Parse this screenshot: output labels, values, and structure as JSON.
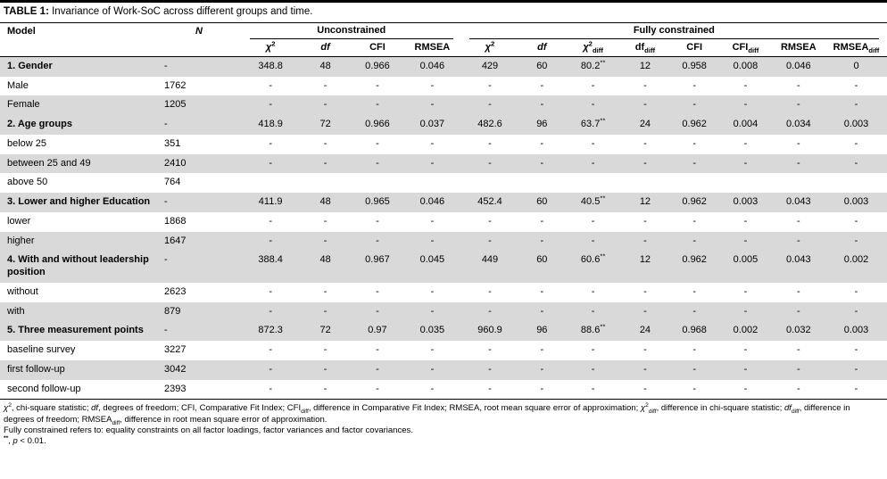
{
  "title": {
    "label": "TABLE 1:",
    "text": " Invariance of Work-SoC across different groups and time."
  },
  "columns": {
    "model": "Model",
    "n": "N",
    "unconstrained": "Unconstrained",
    "fully_constrained": "Fully constrained",
    "sub": [
      "<i>χ</i><sup>2</sup>",
      "<i>df</i>",
      "CFI",
      "RMSEA",
      "<i>χ</i><sup>2</sup>",
      "<i>df</i>",
      "<i>χ</i><sup>2</sup><sub>diff</sub>",
      "df<sub>diff</sub>",
      "CFI",
      "CFI<sub>diff</sub>",
      "RMSEA",
      "RMSEA<sub>diff</sub>"
    ]
  },
  "rows": [
    {
      "type": "group",
      "model": "1. Gender",
      "n": "-",
      "values": [
        "348.8",
        "48",
        "0.966",
        "0.046",
        "429",
        "60",
        "80.2<sup>**</sup>",
        "12",
        "0.958",
        "0.008",
        "0.046",
        "0"
      ]
    },
    {
      "type": "sub",
      "model": "Male",
      "n": "1762",
      "values": [
        "-",
        "-",
        "-",
        "-",
        "-",
        "-",
        "-",
        "-",
        "-",
        "-",
        "-",
        "-"
      ]
    },
    {
      "type": "sub",
      "model": "Female",
      "n": "1205",
      "values": [
        "-",
        "-",
        "-",
        "-",
        "-",
        "-",
        "-",
        "-",
        "-",
        "-",
        "-",
        "-"
      ]
    },
    {
      "type": "group",
      "model": "2. Age groups",
      "n": "-",
      "values": [
        "418.9",
        "72",
        "0.966",
        "0.037",
        "482.6",
        "96",
        "63.7<sup>**</sup>",
        "24",
        "0.962",
        "0.004",
        "0.034",
        "0.003"
      ]
    },
    {
      "type": "sub",
      "model": "below 25",
      "n": "351",
      "values": [
        "-",
        "-",
        "-",
        "-",
        "-",
        "-",
        "-",
        "-",
        "-",
        "-",
        "-",
        "-"
      ]
    },
    {
      "type": "sub",
      "model": "between 25 and 49",
      "n": "2410",
      "values": [
        "-",
        "-",
        "-",
        "-",
        "-",
        "-",
        "-",
        "-",
        "-",
        "-",
        "-",
        "-"
      ]
    },
    {
      "type": "sub",
      "model": "above 50",
      "n": "764",
      "values": [
        "",
        "",
        "",
        "",
        "",
        "",
        "",
        "",
        "",
        "",
        "",
        ""
      ]
    },
    {
      "type": "group",
      "model": "3. Lower and higher Education",
      "n": "-",
      "values": [
        "411.9",
        "48",
        "0.965",
        "0.046",
        "452.4",
        "60",
        "40.5<sup>**</sup>",
        "12",
        "0.962",
        "0.003",
        "0.043",
        "0.003"
      ]
    },
    {
      "type": "sub",
      "model": "lower",
      "n": "1868",
      "values": [
        "-",
        "-",
        "-",
        "-",
        "-",
        "-",
        "-",
        "-",
        "-",
        "-",
        "-",
        "-"
      ]
    },
    {
      "type": "sub",
      "model": "higher",
      "n": "1647",
      "values": [
        "-",
        "-",
        "-",
        "-",
        "-",
        "-",
        "-",
        "-",
        "-",
        "-",
        "-",
        "-"
      ]
    },
    {
      "type": "group",
      "model": "4. With and without leadership position",
      "n": "-",
      "values": [
        "388.4",
        "48",
        "0.967",
        "0.045",
        "449",
        "60",
        "60.6<sup>**</sup>",
        "12",
        "0.962",
        "0.005",
        "0.043",
        "0.002"
      ]
    },
    {
      "type": "sub",
      "model": "without",
      "n": "2623",
      "values": [
        "-",
        "-",
        "-",
        "-",
        "-",
        "-",
        "-",
        "-",
        "-",
        "-",
        "-",
        "-"
      ]
    },
    {
      "type": "sub",
      "model": "with",
      "n": "879",
      "values": [
        "-",
        "-",
        "-",
        "-",
        "-",
        "-",
        "-",
        "-",
        "-",
        "-",
        "-",
        "-"
      ]
    },
    {
      "type": "group",
      "model": "5. Three measurement points",
      "n": "-",
      "values": [
        "872.3",
        "72",
        "0.97",
        "0.035",
        "960.9",
        "96",
        "88.6<sup>**</sup>",
        "24",
        "0.968",
        "0.002",
        "0.032",
        "0.003"
      ]
    },
    {
      "type": "sub",
      "model": "baseline survey",
      "n": "3227",
      "values": [
        "-",
        "-",
        "-",
        "-",
        "-",
        "-",
        "-",
        "-",
        "-",
        "-",
        "-",
        "-"
      ]
    },
    {
      "type": "sub",
      "model": "first follow-up",
      "n": "3042",
      "values": [
        "-",
        "-",
        "-",
        "-",
        "-",
        "-",
        "-",
        "-",
        "-",
        "-",
        "-",
        "-"
      ]
    },
    {
      "type": "sub",
      "model": "second follow-up",
      "n": "2393",
      "values": [
        "-",
        "-",
        "-",
        "-",
        "-",
        "-",
        "-",
        "-",
        "-",
        "-",
        "-",
        "-"
      ]
    }
  ],
  "footnotes": [
    "<i>χ</i><sup>2</sup>, chi-square statistic; <i>df</i>, degrees of freedom; CFI, Comparative Fit Index; CFI<sub>diff</sub>, difference in Comparative Fit Index; RMSEA, root mean square error of approximation; <i>χ</i><sup>2</sup><sub>diff</sub>, difference in chi-square statistic; <i>df</i><sub>diff</sub>, difference in degrees of freedom; RMSEA<sub>diff</sub>, difference in root mean square error of approximation.",
    "Fully constrained refers to: equality constraints on all factor loadings, factor variances and factor covariances.",
    "<sup><b>**</b></sup>, <i>p</i> &lt; 0.01."
  ],
  "colors": {
    "shaded_row": "#d9d9d9",
    "rule": "#000000",
    "text": "#000000"
  }
}
